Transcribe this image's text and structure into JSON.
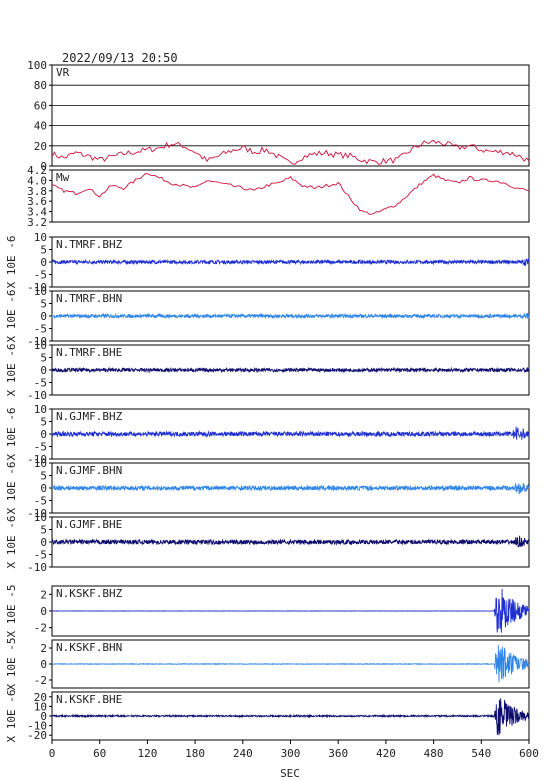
{
  "header": {
    "timestamp": "2022/09/13 20:50"
  },
  "chart_data": {
    "type": "line",
    "x_axis": {
      "label": "SEC",
      "range": [
        0,
        600
      ],
      "ticks": [
        0,
        60,
        120,
        180,
        240,
        300,
        360,
        420,
        480,
        540,
        600
      ]
    },
    "panels": [
      {
        "kind": "vr",
        "label": "VR",
        "ylim": [
          0,
          100
        ],
        "ytick_labels": [
          "100",
          "80",
          "60",
          "40",
          "20",
          "0"
        ],
        "ytick_values": [
          100,
          80,
          60,
          40,
          20,
          0
        ],
        "grid": true,
        "color": "#d0103a",
        "series": {
          "x": [
            0,
            15,
            30,
            45,
            60,
            75,
            90,
            105,
            120,
            135,
            150,
            165,
            180,
            195,
            210,
            225,
            240,
            255,
            270,
            285,
            300,
            315,
            330,
            345,
            360,
            375,
            390,
            405,
            420,
            435,
            450,
            465,
            480,
            495,
            510,
            525,
            540,
            555,
            570,
            585,
            600
          ],
          "y": [
            12,
            8,
            13,
            10,
            6,
            9,
            12,
            14,
            16,
            18,
            22,
            20,
            14,
            5,
            10,
            15,
            18,
            14,
            16,
            9,
            2,
            9,
            12,
            13,
            11,
            10,
            6,
            4,
            5,
            6,
            15,
            22,
            24,
            22,
            18,
            20,
            16,
            14,
            14,
            11,
            5
          ]
        }
      },
      {
        "kind": "mw",
        "label": "Mw",
        "ylim": [
          3.2,
          4.2
        ],
        "ytick_labels": [
          "4.2",
          "4.0",
          "3.8",
          "3.6",
          "3.4",
          "3.2"
        ],
        "ytick_values": [
          4.2,
          4.0,
          3.8,
          3.6,
          3.4,
          3.2
        ],
        "grid": false,
        "color": "#d0103a",
        "series": {
          "x": [
            0,
            15,
            30,
            45,
            60,
            75,
            90,
            105,
            120,
            135,
            150,
            165,
            180,
            195,
            210,
            225,
            240,
            255,
            270,
            285,
            300,
            315,
            330,
            345,
            360,
            375,
            390,
            405,
            420,
            435,
            450,
            465,
            480,
            495,
            510,
            525,
            540,
            555,
            570,
            585,
            600
          ],
          "y": [
            3.9,
            3.8,
            3.75,
            3.85,
            3.7,
            3.9,
            3.85,
            4.0,
            4.15,
            4.05,
            3.95,
            3.9,
            3.85,
            4.0,
            3.95,
            3.9,
            3.85,
            3.8,
            3.9,
            3.95,
            4.05,
            3.9,
            3.85,
            3.9,
            3.95,
            3.65,
            3.4,
            3.35,
            3.45,
            3.55,
            3.75,
            3.95,
            4.1,
            4.0,
            3.95,
            4.05,
            4.0,
            4.0,
            3.95,
            3.85,
            3.8
          ]
        }
      },
      {
        "kind": "wave",
        "label": "N.TMRF.BHZ",
        "ylabel": "X 10E -6",
        "ylim": [
          -10,
          10
        ],
        "ytick_labels": [
          "10",
          "5",
          "0",
          "-5",
          "-10"
        ],
        "ytick_values": [
          10,
          5,
          0,
          -5,
          -10
        ],
        "color": "#1f2fd0",
        "baseline_amplitude": 0.7,
        "burst_start": 590,
        "burst_amplitude": 1.5
      },
      {
        "kind": "wave",
        "label": "N.TMRF.BHN",
        "ylabel": "X 10E -6",
        "ylim": [
          -10,
          10
        ],
        "ytick_labels": [
          "10",
          "5",
          "0",
          "-5",
          "-10"
        ],
        "ytick_values": [
          10,
          5,
          0,
          -5,
          -10
        ],
        "color": "#2f86e8",
        "baseline_amplitude": 0.7,
        "burst_start": 590,
        "burst_amplitude": 1.2
      },
      {
        "kind": "wave",
        "label": "N.TMRF.BHE",
        "ylabel": "X 10E -6",
        "ylim": [
          -10,
          10
        ],
        "ytick_labels": [
          "10",
          "5",
          "0",
          "-5",
          "-10"
        ],
        "ytick_values": [
          10,
          5,
          0,
          -5,
          -10
        ],
        "color": "#0d0d6e",
        "baseline_amplitude": 0.7,
        "burst_start": 590,
        "burst_amplitude": 1.2
      },
      {
        "kind": "wave",
        "label": "N.GJMF.BHZ",
        "ylabel": "X 10E -6",
        "ylim": [
          -10,
          10
        ],
        "ytick_labels": [
          "10",
          "5",
          "0",
          "-5",
          "-10"
        ],
        "ytick_values": [
          10,
          5,
          0,
          -5,
          -10
        ],
        "color": "#1f2fd0",
        "baseline_amplitude": 0.9,
        "burst_start": 578,
        "burst_amplitude": 3.0
      },
      {
        "kind": "wave",
        "label": "N.GJMF.BHN",
        "ylabel": "X 10E -6",
        "ylim": [
          -10,
          10
        ],
        "ytick_labels": [
          "10",
          "5",
          "0",
          "-5",
          "-10"
        ],
        "ytick_values": [
          10,
          5,
          0,
          -5,
          -10
        ],
        "color": "#2f86e8",
        "baseline_amplitude": 0.9,
        "burst_start": 580,
        "burst_amplitude": 2.4
      },
      {
        "kind": "wave",
        "label": "N.GJMF.BHE",
        "ylabel": "X 10E -6",
        "ylim": [
          -10,
          10
        ],
        "ytick_labels": [
          "10",
          "5",
          "0",
          "-5",
          "-10"
        ],
        "ytick_values": [
          10,
          5,
          0,
          -5,
          -10
        ],
        "color": "#0d0d6e",
        "baseline_amplitude": 0.9,
        "burst_start": 580,
        "burst_amplitude": 2.2
      },
      {
        "kind": "wave",
        "label": "N.KSKF.BHZ",
        "ylabel": "X 10E -5",
        "ylim": [
          -3,
          3
        ],
        "ytick_labels": [
          "2",
          "0",
          "-2"
        ],
        "ytick_values": [
          2,
          0,
          -2
        ],
        "color": "#1f2fd0",
        "baseline_amplitude": 0.02,
        "burst_start": 556,
        "burst_amplitude": 3.0
      },
      {
        "kind": "wave",
        "label": "N.KSKF.BHN",
        "ylabel": "X 10E -5",
        "ylim": [
          -3,
          3
        ],
        "ytick_labels": [
          "2",
          "0",
          "-2"
        ],
        "ytick_values": [
          2,
          0,
          -2
        ],
        "color": "#2f86e8",
        "baseline_amplitude": 0.04,
        "burst_start": 556,
        "burst_amplitude": 2.8
      },
      {
        "kind": "wave",
        "label": "N.KSKF.BHE",
        "ylabel": "X 10E -6",
        "ylim": [
          -25,
          25
        ],
        "ytick_labels": [
          "20",
          "10",
          "0",
          "-10",
          "-20"
        ],
        "ytick_values": [
          20,
          10,
          0,
          -10,
          -20
        ],
        "color": "#0d0d6e",
        "baseline_amplitude": 0.8,
        "burst_start": 556,
        "burst_amplitude": 21
      }
    ]
  }
}
